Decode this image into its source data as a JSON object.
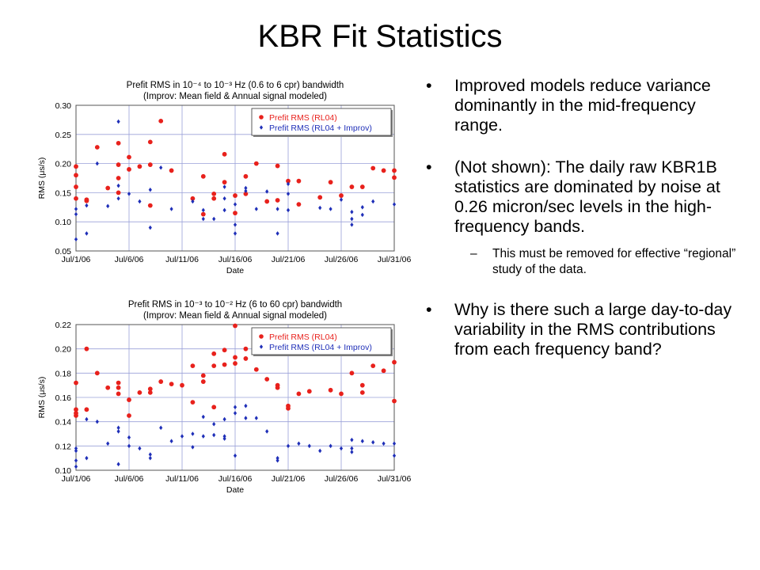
{
  "slide": {
    "title": "KBR Fit Statistics"
  },
  "bullets": {
    "b1": "Improved models reduce variance dominantly in the mid-frequency range.",
    "b2": "(Not shown): The daily raw KBR1B statistics are dominated by noise at 0.26 micron/sec levels in the high-frequency bands.",
    "b2_sub": "This must be removed for effective “regional” study of the data.",
    "b3": "Why is there such a large day-to-day variability in the RMS contributions from each frequency band?",
    "bullet_symbol": "•",
    "sub_symbol": "–"
  },
  "chart_data": [
    {
      "type": "scatter",
      "title": "Prefit RMS in 10⁻⁴ to 10⁻³ Hz (0.6 to 6 cpr) bandwidth",
      "subtitle": "(Improv: Mean field & Annual signal modeled)",
      "xlabel": "Date",
      "ylabel": "RMS (μs/s)",
      "xlim": [
        "2006-07-01",
        "2006-07-31"
      ],
      "ylim": [
        0.05,
        0.3
      ],
      "yticks": [
        "0.05",
        "0.10",
        "0.15",
        "0.20",
        "0.25",
        "0.30"
      ],
      "xticks": [
        "Jul/1/06",
        "Jul/6/06",
        "Jul/11/06",
        "Jul/16/06",
        "Jul/21/06",
        "Jul/26/06",
        "Jul/31/06"
      ],
      "grid": true,
      "legend_position": "top-right",
      "series": [
        {
          "name": "Prefit RMS (RL04)",
          "color": "#e8211c",
          "x": [
            "2006-07-01",
            "2006-07-01",
            "2006-07-01",
            "2006-07-01",
            "2006-07-02",
            "2006-07-02",
            "2006-07-03",
            "2006-07-04",
            "2006-07-05",
            "2006-07-05",
            "2006-07-05",
            "2006-07-05",
            "2006-07-06",
            "2006-07-06",
            "2006-07-07",
            "2006-07-08",
            "2006-07-08",
            "2006-07-08",
            "2006-07-09",
            "2006-07-10",
            "2006-07-12",
            "2006-07-13",
            "2006-07-13",
            "2006-07-14",
            "2006-07-14",
            "2006-07-15",
            "2006-07-15",
            "2006-07-16",
            "2006-07-16",
            "2006-07-17",
            "2006-07-17",
            "2006-07-18",
            "2006-07-19",
            "2006-07-20",
            "2006-07-20",
            "2006-07-21",
            "2006-07-22",
            "2006-07-22",
            "2006-07-24",
            "2006-07-25",
            "2006-07-26",
            "2006-07-27",
            "2006-07-28",
            "2006-07-29",
            "2006-07-30",
            "2006-07-31",
            "2006-07-31"
          ],
          "y": [
            0.195,
            0.18,
            0.16,
            0.14,
            0.138,
            0.136,
            0.228,
            0.158,
            0.235,
            0.198,
            0.175,
            0.15,
            0.211,
            0.19,
            0.195,
            0.237,
            0.198,
            0.128,
            0.273,
            0.188,
            0.14,
            0.178,
            0.113,
            0.148,
            0.14,
            0.216,
            0.168,
            0.145,
            0.115,
            0.178,
            0.148,
            0.2,
            0.135,
            0.196,
            0.137,
            0.17,
            0.17,
            0.13,
            0.142,
            0.168,
            0.145,
            0.16,
            0.16,
            0.192,
            0.188,
            0.188,
            0.176
          ]
        },
        {
          "name": "Prefit RMS (RL04 + Improv)",
          "color": "#1f2fb8",
          "x": [
            "2006-07-01",
            "2006-07-01",
            "2006-07-01",
            "2006-07-02",
            "2006-07-02",
            "2006-07-03",
            "2006-07-04",
            "2006-07-05",
            "2006-07-05",
            "2006-07-05",
            "2006-07-06",
            "2006-07-07",
            "2006-07-08",
            "2006-07-08",
            "2006-07-09",
            "2006-07-10",
            "2006-07-12",
            "2006-07-13",
            "2006-07-13",
            "2006-07-14",
            "2006-07-15",
            "2006-07-15",
            "2006-07-15",
            "2006-07-16",
            "2006-07-16",
            "2006-07-16",
            "2006-07-17",
            "2006-07-17",
            "2006-07-18",
            "2006-07-19",
            "2006-07-20",
            "2006-07-20",
            "2006-07-21",
            "2006-07-21",
            "2006-07-21",
            "2006-07-22",
            "2006-07-24",
            "2006-07-25",
            "2006-07-26",
            "2006-07-27",
            "2006-07-27",
            "2006-07-27",
            "2006-07-28",
            "2006-07-28",
            "2006-07-29",
            "2006-07-31"
          ],
          "y": [
            0.122,
            0.113,
            0.07,
            0.128,
            0.08,
            0.2,
            0.127,
            0.272,
            0.162,
            0.14,
            0.148,
            0.135,
            0.155,
            0.09,
            0.193,
            0.122,
            0.135,
            0.105,
            0.12,
            0.105,
            0.16,
            0.14,
            0.12,
            0.13,
            0.095,
            0.08,
            0.158,
            0.153,
            0.122,
            0.152,
            0.122,
            0.08,
            0.165,
            0.148,
            0.12,
            0.251,
            0.124,
            0.122,
            0.138,
            0.117,
            0.105,
            0.095,
            0.125,
            0.112,
            0.135,
            0.13
          ]
        }
      ]
    },
    {
      "type": "scatter",
      "title": "Prefit RMS in 10⁻³ to 10⁻² Hz (6 to 60 cpr) bandwidth",
      "subtitle": "(Improv: Mean field & Annual signal modeled)",
      "xlabel": "Date",
      "ylabel": "RMS (μs/s)",
      "xlim": [
        "2006-07-01",
        "2006-07-31"
      ],
      "ylim": [
        0.1,
        0.22
      ],
      "yticks": [
        "0.10",
        "0.12",
        "0.14",
        "0.16",
        "0.18",
        "0.20",
        "0.22"
      ],
      "xticks": [
        "Jul/1/06",
        "Jul/6/06",
        "Jul/11/06",
        "Jul/16/06",
        "Jul/21/06",
        "Jul/26/06",
        "Jul/31/06"
      ],
      "grid": true,
      "legend_position": "top-right",
      "series": [
        {
          "name": "Prefit RMS (RL04)",
          "color": "#e8211c",
          "x": [
            "2006-07-01",
            "2006-07-01",
            "2006-07-01",
            "2006-07-01",
            "2006-07-02",
            "2006-07-02",
            "2006-07-03",
            "2006-07-04",
            "2006-07-05",
            "2006-07-05",
            "2006-07-05",
            "2006-07-06",
            "2006-07-06",
            "2006-07-07",
            "2006-07-08",
            "2006-07-08",
            "2006-07-09",
            "2006-07-10",
            "2006-07-11",
            "2006-07-12",
            "2006-07-12",
            "2006-07-13",
            "2006-07-13",
            "2006-07-14",
            "2006-07-14",
            "2006-07-14",
            "2006-07-15",
            "2006-07-15",
            "2006-07-16",
            "2006-07-16",
            "2006-07-16",
            "2006-07-17",
            "2006-07-17",
            "2006-07-18",
            "2006-07-19",
            "2006-07-20",
            "2006-07-20",
            "2006-07-21",
            "2006-07-21",
            "2006-07-22",
            "2006-07-23",
            "2006-07-25",
            "2006-07-26",
            "2006-07-27",
            "2006-07-28",
            "2006-07-28",
            "2006-07-29",
            "2006-07-30",
            "2006-07-31",
            "2006-07-31"
          ],
          "y": [
            0.172,
            0.15,
            0.147,
            0.145,
            0.2,
            0.15,
            0.18,
            0.168,
            0.172,
            0.168,
            0.163,
            0.158,
            0.145,
            0.164,
            0.167,
            0.164,
            0.173,
            0.171,
            0.17,
            0.186,
            0.156,
            0.178,
            0.173,
            0.196,
            0.186,
            0.152,
            0.199,
            0.187,
            0.219,
            0.193,
            0.188,
            0.2,
            0.192,
            0.183,
            0.175,
            0.17,
            0.168,
            0.153,
            0.151,
            0.163,
            0.165,
            0.166,
            0.163,
            0.18,
            0.164,
            0.17,
            0.186,
            0.182,
            0.189,
            0.157
          ]
        },
        {
          "name": "Prefit RMS (RL04 + Improv)",
          "color": "#1f2fb8",
          "x": [
            "2006-07-01",
            "2006-07-01",
            "2006-07-01",
            "2006-07-01",
            "2006-07-02",
            "2006-07-02",
            "2006-07-03",
            "2006-07-04",
            "2006-07-05",
            "2006-07-05",
            "2006-07-05",
            "2006-07-06",
            "2006-07-06",
            "2006-07-07",
            "2006-07-08",
            "2006-07-08",
            "2006-07-09",
            "2006-07-10",
            "2006-07-11",
            "2006-07-12",
            "2006-07-12",
            "2006-07-13",
            "2006-07-13",
            "2006-07-14",
            "2006-07-14",
            "2006-07-15",
            "2006-07-15",
            "2006-07-15",
            "2006-07-16",
            "2006-07-16",
            "2006-07-16",
            "2006-07-17",
            "2006-07-17",
            "2006-07-18",
            "2006-07-19",
            "2006-07-20",
            "2006-07-20",
            "2006-07-21",
            "2006-07-22",
            "2006-07-23",
            "2006-07-24",
            "2006-07-25",
            "2006-07-26",
            "2006-07-27",
            "2006-07-27",
            "2006-07-27",
            "2006-07-28",
            "2006-07-29",
            "2006-07-30",
            "2006-07-31",
            "2006-07-31"
          ],
          "y": [
            0.116,
            0.108,
            0.103,
            0.118,
            0.142,
            0.11,
            0.14,
            0.122,
            0.135,
            0.132,
            0.105,
            0.127,
            0.12,
            0.118,
            0.113,
            0.11,
            0.135,
            0.124,
            0.128,
            0.13,
            0.119,
            0.128,
            0.144,
            0.138,
            0.129,
            0.142,
            0.128,
            0.126,
            0.152,
            0.147,
            0.112,
            0.153,
            0.143,
            0.143,
            0.132,
            0.11,
            0.108,
            0.12,
            0.122,
            0.12,
            0.116,
            0.12,
            0.118,
            0.125,
            0.118,
            0.115,
            0.124,
            0.123,
            0.122,
            0.122,
            0.112
          ]
        }
      ]
    }
  ]
}
